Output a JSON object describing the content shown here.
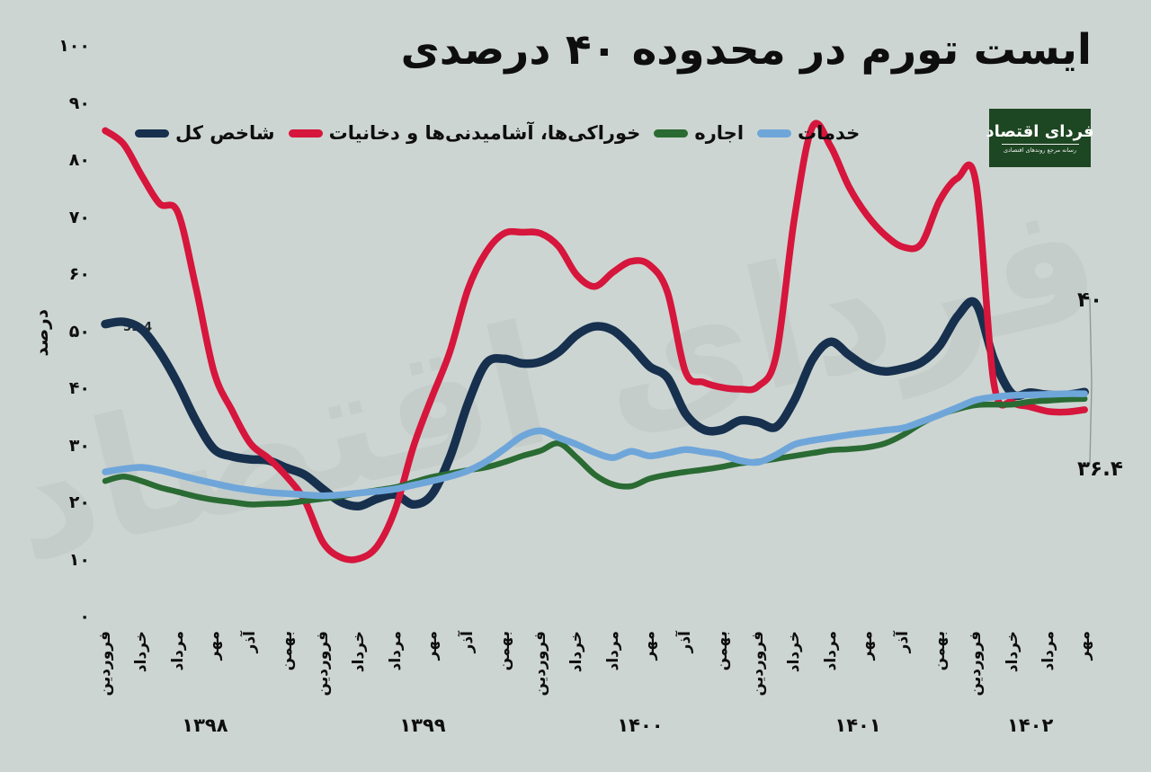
{
  "page": {
    "background": "#cdd5d2"
  },
  "title": "ایست تورم در محدوده ۴۰ درصدی",
  "logo": {
    "name": "فردای اقتصاد",
    "tagline": "رسانه مرجع روندهای اقتصادی",
    "background": "#1d4622"
  },
  "watermark": "فردای اقتصاد",
  "annotations": {
    "upper_value": "۴۰",
    "lower_value": "۳۶.۴",
    "series_start_value": "51.4"
  },
  "chart_data": {
    "type": "line",
    "title": "ایست تورم در محدوده ۴۰ درصدی",
    "ylabel": "درصد",
    "ylim": [
      0,
      100
    ],
    "grid": false,
    "legend_position": "top",
    "y_ticks": [
      {
        "label": "۱۰۰",
        "value": 100
      },
      {
        "label": "۹۰",
        "value": 90
      },
      {
        "label": "۸۰",
        "value": 80
      },
      {
        "label": "۷۰",
        "value": 70
      },
      {
        "label": "۶۰",
        "value": 60
      },
      {
        "label": "۵۰",
        "value": 50
      },
      {
        "label": "۴۰",
        "value": 40
      },
      {
        "label": "۳۰",
        "value": 30
      },
      {
        "label": "۲۰",
        "value": 20
      },
      {
        "label": "۱۰",
        "value": 10
      },
      {
        "label": "۰",
        "value": 0
      }
    ],
    "x_ticks": [
      {
        "label": "فروردین",
        "month_index": 0
      },
      {
        "label": "خرداد",
        "month_index": 2
      },
      {
        "label": "مرداد",
        "month_index": 4
      },
      {
        "label": "مهر",
        "month_index": 6
      },
      {
        "label": "آذر",
        "month_index": 8
      },
      {
        "label": "بهمن",
        "month_index": 10
      },
      {
        "label": "فروردین",
        "month_index": 12
      },
      {
        "label": "خرداد",
        "month_index": 14
      },
      {
        "label": "مرداد",
        "month_index": 16
      },
      {
        "label": "مهر",
        "month_index": 18
      },
      {
        "label": "آذر",
        "month_index": 20
      },
      {
        "label": "بهمن",
        "month_index": 22
      },
      {
        "label": "فروردین",
        "month_index": 24
      },
      {
        "label": "خرداد",
        "month_index": 26
      },
      {
        "label": "مرداد",
        "month_index": 28
      },
      {
        "label": "مهر",
        "month_index": 30
      },
      {
        "label": "آذر",
        "month_index": 32
      },
      {
        "label": "بهمن",
        "month_index": 34
      },
      {
        "label": "فروردین",
        "month_index": 36
      },
      {
        "label": "خرداد",
        "month_index": 38
      },
      {
        "label": "مرداد",
        "month_index": 40
      },
      {
        "label": "مهر",
        "month_index": 42
      },
      {
        "label": "آذر",
        "month_index": 44
      },
      {
        "label": "بهمن",
        "month_index": 46
      },
      {
        "label": "فروردین",
        "month_index": 48
      },
      {
        "label": "خرداد",
        "month_index": 50
      },
      {
        "label": "مرداد",
        "month_index": 52
      },
      {
        "label": "مهر",
        "month_index": 54
      }
    ],
    "years": [
      {
        "label": "۱۳۹۸",
        "center_month": 5.5
      },
      {
        "label": "۱۳۹۹",
        "center_month": 17.5
      },
      {
        "label": "۱۴۰۰",
        "center_month": 29.5
      },
      {
        "label": "۱۴۰۱",
        "center_month": 41.5
      },
      {
        "label": "۱۴۰۲",
        "center_month": 51
      }
    ],
    "series": [
      {
        "name": "شاخص کل",
        "color": "#16304e",
        "stroke_width": 9.5,
        "values": [
          51.4,
          51.8,
          50.5,
          46.5,
          41,
          34.5,
          29.5,
          28.2,
          27.7,
          27.5,
          26.2,
          25,
          22.5,
          20.2,
          19.5,
          20.8,
          21.5,
          19.8,
          21.5,
          28,
          37.5,
          44.5,
          45.3,
          44.5,
          44.8,
          46.5,
          49.5,
          51,
          50.3,
          47.5,
          44,
          42,
          35.7,
          32.9,
          32.9,
          34.5,
          34.2,
          33.4,
          38.1,
          45.2,
          48.3,
          46,
          43.9,
          43.1,
          43.6,
          44.7,
          47.6,
          52.8,
          55,
          45.2,
          39.2,
          39.4,
          39,
          39,
          39.5
        ]
      },
      {
        "name": "خوراکی‌ها، آشامیدنی‌ها و دخانیات",
        "color": "#d6163c",
        "stroke_width": 7.5,
        "values": [
          85.3,
          83,
          77.5,
          72.5,
          71,
          57.8,
          43,
          36.2,
          30.5,
          27.9,
          24.7,
          20.5,
          13.2,
          10.5,
          10.3,
          12.5,
          19,
          30,
          38.5,
          46.5,
          57.5,
          64,
          67.3,
          67.5,
          67.3,
          65,
          60,
          58,
          60.5,
          62.4,
          61.8,
          57,
          43,
          41.2,
          40.3,
          40,
          40.5,
          46,
          70,
          86,
          82.5,
          75.5,
          70.5,
          67,
          64.9,
          65.5,
          73,
          77,
          76.3,
          41,
          37.7,
          36.9,
          36.1,
          36,
          36.4
        ]
      },
      {
        "name": "اجاره",
        "color": "#2a6b33",
        "stroke_width": 6.5,
        "values": [
          23.9,
          24.7,
          23.9,
          22.8,
          22,
          21.2,
          20.6,
          20.2,
          19.8,
          19.9,
          20,
          20.4,
          20.8,
          21.2,
          21.8,
          22.3,
          22.8,
          23.7,
          24.6,
          25.2,
          25.8,
          26.3,
          27.2,
          28.3,
          29.2,
          30.5,
          28,
          25,
          23.3,
          23,
          24.3,
          25,
          25.5,
          25.9,
          26.4,
          27,
          27.3,
          27.8,
          28.3,
          28.8,
          29.3,
          29.5,
          29.8,
          30.5,
          32,
          34,
          35.5,
          36.5,
          37.2,
          37.3,
          37.3,
          37.8,
          38,
          38.2,
          38.3
        ]
      },
      {
        "name": "خدمات",
        "color": "#6fa6da",
        "stroke_width": 7.5,
        "values": [
          25.5,
          26,
          26.3,
          25.8,
          25,
          24.2,
          23.5,
          22.8,
          22.3,
          21.9,
          21.7,
          21.5,
          21.3,
          21.5,
          21.8,
          22.1,
          22.5,
          23.2,
          23.9,
          24.7,
          25.7,
          27.3,
          29.5,
          31.8,
          32.7,
          31.5,
          30.3,
          28.9,
          28,
          29.1,
          28.3,
          28.8,
          29.4,
          29,
          28.5,
          27.5,
          27.2,
          28.5,
          30.3,
          31,
          31.5,
          32,
          32.4,
          32.8,
          33.2,
          34.3,
          35.5,
          36.8,
          38.1,
          38.6,
          38.9,
          39,
          39.1,
          39.2,
          39.2
        ]
      }
    ]
  }
}
